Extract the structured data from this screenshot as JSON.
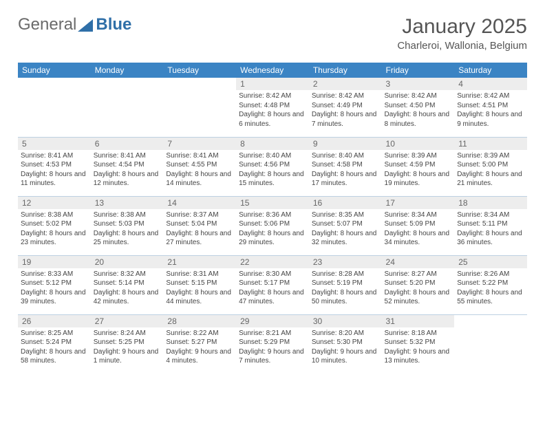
{
  "logo": {
    "text_left": "General",
    "text_right": "Blue"
  },
  "title": "January 2025",
  "location": "Charleroi, Wallonia, Belgium",
  "colors": {
    "header_bg": "#3b84c4",
    "header_fg": "#ffffff",
    "daynum_bg": "#ededed",
    "row_border": "#bcd0e2",
    "text": "#444444",
    "logo_gray": "#6a6a6a",
    "logo_blue": "#2f6fa8"
  },
  "weekdays": [
    "Sunday",
    "Monday",
    "Tuesday",
    "Wednesday",
    "Thursday",
    "Friday",
    "Saturday"
  ],
  "weeks": [
    [
      null,
      null,
      null,
      {
        "n": "1",
        "sr": "8:42 AM",
        "ss": "4:48 PM",
        "dl": "8 hours and 6 minutes."
      },
      {
        "n": "2",
        "sr": "8:42 AM",
        "ss": "4:49 PM",
        "dl": "8 hours and 7 minutes."
      },
      {
        "n": "3",
        "sr": "8:42 AM",
        "ss": "4:50 PM",
        "dl": "8 hours and 8 minutes."
      },
      {
        "n": "4",
        "sr": "8:42 AM",
        "ss": "4:51 PM",
        "dl": "8 hours and 9 minutes."
      }
    ],
    [
      {
        "n": "5",
        "sr": "8:41 AM",
        "ss": "4:53 PM",
        "dl": "8 hours and 11 minutes."
      },
      {
        "n": "6",
        "sr": "8:41 AM",
        "ss": "4:54 PM",
        "dl": "8 hours and 12 minutes."
      },
      {
        "n": "7",
        "sr": "8:41 AM",
        "ss": "4:55 PM",
        "dl": "8 hours and 14 minutes."
      },
      {
        "n": "8",
        "sr": "8:40 AM",
        "ss": "4:56 PM",
        "dl": "8 hours and 15 minutes."
      },
      {
        "n": "9",
        "sr": "8:40 AM",
        "ss": "4:58 PM",
        "dl": "8 hours and 17 minutes."
      },
      {
        "n": "10",
        "sr": "8:39 AM",
        "ss": "4:59 PM",
        "dl": "8 hours and 19 minutes."
      },
      {
        "n": "11",
        "sr": "8:39 AM",
        "ss": "5:00 PM",
        "dl": "8 hours and 21 minutes."
      }
    ],
    [
      {
        "n": "12",
        "sr": "8:38 AM",
        "ss": "5:02 PM",
        "dl": "8 hours and 23 minutes."
      },
      {
        "n": "13",
        "sr": "8:38 AM",
        "ss": "5:03 PM",
        "dl": "8 hours and 25 minutes."
      },
      {
        "n": "14",
        "sr": "8:37 AM",
        "ss": "5:04 PM",
        "dl": "8 hours and 27 minutes."
      },
      {
        "n": "15",
        "sr": "8:36 AM",
        "ss": "5:06 PM",
        "dl": "8 hours and 29 minutes."
      },
      {
        "n": "16",
        "sr": "8:35 AM",
        "ss": "5:07 PM",
        "dl": "8 hours and 32 minutes."
      },
      {
        "n": "17",
        "sr": "8:34 AM",
        "ss": "5:09 PM",
        "dl": "8 hours and 34 minutes."
      },
      {
        "n": "18",
        "sr": "8:34 AM",
        "ss": "5:11 PM",
        "dl": "8 hours and 36 minutes."
      }
    ],
    [
      {
        "n": "19",
        "sr": "8:33 AM",
        "ss": "5:12 PM",
        "dl": "8 hours and 39 minutes."
      },
      {
        "n": "20",
        "sr": "8:32 AM",
        "ss": "5:14 PM",
        "dl": "8 hours and 42 minutes."
      },
      {
        "n": "21",
        "sr": "8:31 AM",
        "ss": "5:15 PM",
        "dl": "8 hours and 44 minutes."
      },
      {
        "n": "22",
        "sr": "8:30 AM",
        "ss": "5:17 PM",
        "dl": "8 hours and 47 minutes."
      },
      {
        "n": "23",
        "sr": "8:28 AM",
        "ss": "5:19 PM",
        "dl": "8 hours and 50 minutes."
      },
      {
        "n": "24",
        "sr": "8:27 AM",
        "ss": "5:20 PM",
        "dl": "8 hours and 52 minutes."
      },
      {
        "n": "25",
        "sr": "8:26 AM",
        "ss": "5:22 PM",
        "dl": "8 hours and 55 minutes."
      }
    ],
    [
      {
        "n": "26",
        "sr": "8:25 AM",
        "ss": "5:24 PM",
        "dl": "8 hours and 58 minutes."
      },
      {
        "n": "27",
        "sr": "8:24 AM",
        "ss": "5:25 PM",
        "dl": "9 hours and 1 minute."
      },
      {
        "n": "28",
        "sr": "8:22 AM",
        "ss": "5:27 PM",
        "dl": "9 hours and 4 minutes."
      },
      {
        "n": "29",
        "sr": "8:21 AM",
        "ss": "5:29 PM",
        "dl": "9 hours and 7 minutes."
      },
      {
        "n": "30",
        "sr": "8:20 AM",
        "ss": "5:30 PM",
        "dl": "9 hours and 10 minutes."
      },
      {
        "n": "31",
        "sr": "8:18 AM",
        "ss": "5:32 PM",
        "dl": "9 hours and 13 minutes."
      },
      null
    ]
  ],
  "labels": {
    "sunrise": "Sunrise:",
    "sunset": "Sunset:",
    "daylight": "Daylight:"
  }
}
